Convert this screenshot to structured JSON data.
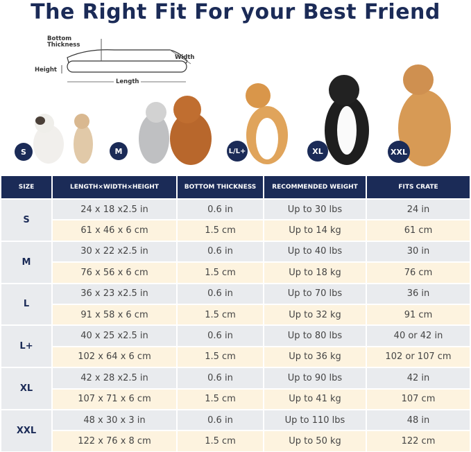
{
  "title": "The Right Fit For your Best Friend",
  "diagram": {
    "bottom_thickness": "Bottom Thickness",
    "height": "Height",
    "width": "Width",
    "length": "Length"
  },
  "badges": [
    "S",
    "M",
    "L/L+",
    "XL",
    "XXL"
  ],
  "colors": {
    "navy": "#1b2b57",
    "gray_row": "#e9ebee",
    "cream_row": "#fdf3df"
  },
  "table": {
    "headers": [
      "SIZE",
      "LENGTH×WIDTH×HEIGHT",
      "BOTTOM THICKNESS",
      "RECOMMENDED WEIGHT",
      "FITS CRATE"
    ],
    "rows": [
      {
        "size": "S",
        "in": [
          "24 x 18 x2.5 in",
          "0.6 in",
          "Up to 30 lbs",
          "24 in"
        ],
        "cm": [
          "61 x 46 x 6 cm",
          "1.5 cm",
          "Up to 14 kg",
          "61 cm"
        ]
      },
      {
        "size": "M",
        "in": [
          "30 x 22 x2.5 in",
          "0.6 in",
          "Up to 40 lbs",
          "30 in"
        ],
        "cm": [
          "76 x 56 x 6 cm",
          "1.5 cm",
          "Up to 18 kg",
          "76 cm"
        ]
      },
      {
        "size": "L",
        "in": [
          "36 x 23 x2.5 in",
          "0.6 in",
          "Up to 70 lbs",
          "36 in"
        ],
        "cm": [
          "91 x 58 x 6 cm",
          "1.5 cm",
          "Up to 32 kg",
          "91 cm"
        ]
      },
      {
        "size": "L+",
        "in": [
          "40 x 25 x2.5 in",
          "0.6 in",
          "Up to 80 lbs",
          "40 or 42 in"
        ],
        "cm": [
          "102 x 64 x 6 cm",
          "1.5 cm",
          "Up to 36 kg",
          "102 or 107 cm"
        ]
      },
      {
        "size": "XL",
        "in": [
          "42 x 28 x2.5 in",
          "0.6 in",
          "Up to 90 lbs",
          "42 in"
        ],
        "cm": [
          "107 x 71 x 6 cm",
          "1.5 cm",
          "Up to 41 kg",
          "107 cm"
        ]
      },
      {
        "size": "XXL",
        "in": [
          "48 x 30 x 3 in",
          "0.6 in",
          "Up to 110 lbs",
          "48 in"
        ],
        "cm": [
          "122 x 76 x 8 cm",
          "1.5 cm",
          "Up to 50 kg",
          "122 cm"
        ]
      }
    ]
  }
}
